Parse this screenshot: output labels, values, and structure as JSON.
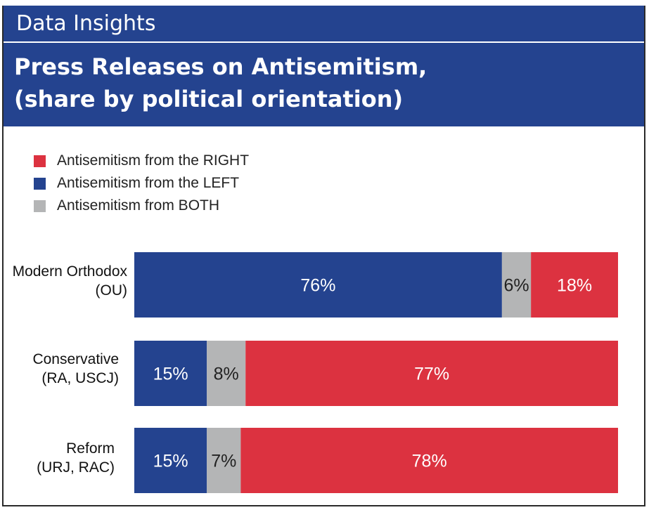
{
  "header": {
    "band_label": "Data Insights",
    "title_line1": "Press Releases on Antisemitism,",
    "title_line2": "(share by political orientation)"
  },
  "colors": {
    "right": "#dc3240",
    "left": "#24438f",
    "both": "#b4b5b6",
    "band": "#24438f"
  },
  "chart_data": {
    "type": "bar",
    "orientation": "horizontal",
    "stacked": true,
    "normalized": true,
    "legend_position": "top-left",
    "legend": [
      {
        "key": "right",
        "label": "Antisemitism from the RIGHT"
      },
      {
        "key": "left",
        "label": "Antisemitism from the LEFT"
      },
      {
        "key": "both",
        "label": "Antisemitism from BOTH"
      }
    ],
    "categories": [
      {
        "line1": "Modern Orthodox",
        "line2": "(OU)"
      },
      {
        "line1": "Conservative",
        "line2": "(RA, USCJ)"
      },
      {
        "line1": "Reform",
        "line2": "(URJ, RAC)"
      }
    ],
    "segment_order": [
      "left",
      "both",
      "right"
    ],
    "series": [
      {
        "key": "left",
        "values": [
          76,
          15,
          15
        ],
        "labels": [
          "76%",
          "15%",
          "15%"
        ]
      },
      {
        "key": "both",
        "values": [
          6,
          8,
          7
        ],
        "labels": [
          "6%",
          "8%",
          "7%"
        ]
      },
      {
        "key": "right",
        "values": [
          18,
          77,
          78
        ],
        "labels": [
          "18%",
          "77%",
          "78%"
        ]
      }
    ],
    "xlim": [
      0,
      100
    ]
  }
}
